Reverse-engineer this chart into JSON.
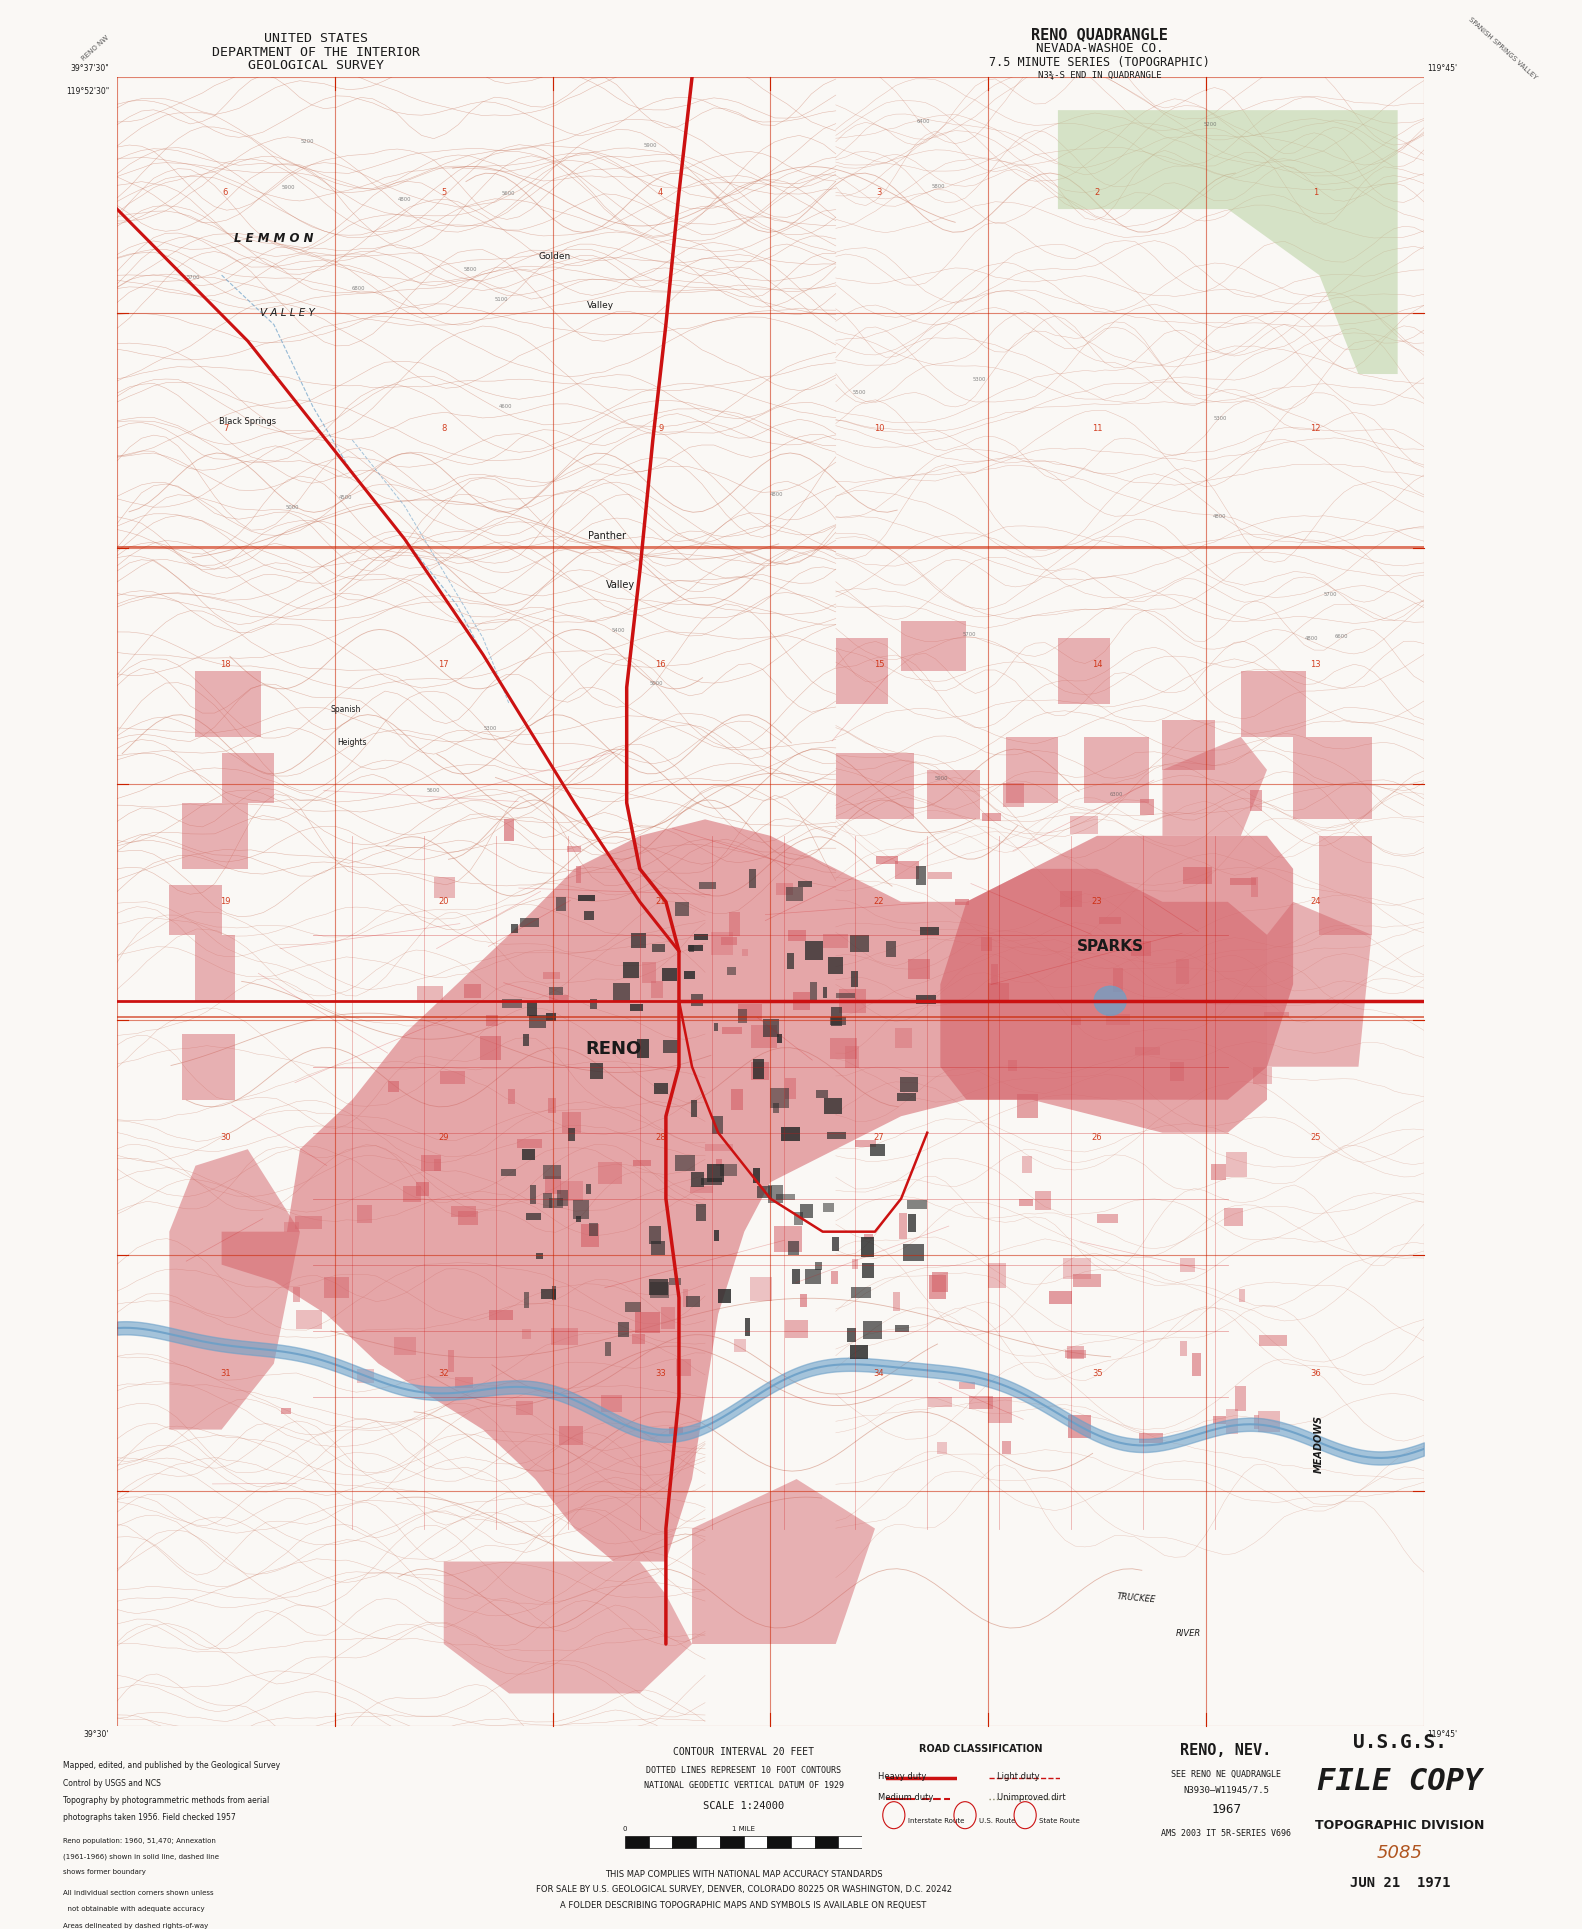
{
  "usgs_header_line1": "UNITED STATES",
  "usgs_header_line2": "DEPARTMENT OF THE INTERIOR",
  "usgs_header_line3": "GEOLOGICAL SURVEY",
  "quad_title": "RENO QUADRANGLE",
  "quad_state": "NEVADA-WASHOE CO.",
  "quad_series": "7.5 MINUTE SERIES (TOPOGRAPHIC)",
  "quad_nse": "N3¾-S END IN QUADRANGLE",
  "diagonal_label": "SPANISH SPRINGS VALLEY",
  "diagonal_label2": "RENO NW",
  "coord_tl_lat": "39°37'30\"",
  "coord_tl_lon": "119°52'30\"",
  "coord_tr_lon": "119°45'",
  "coord_bl_lat": "39°30'",
  "coord_br_lon": "119°45'",
  "stamp_line1": "U.S.G.S.",
  "stamp_line2": "FILE COPY",
  "stamp_line3": "TOPOGRAPHIC DIVISION",
  "stamp_number": "5085",
  "stamp_date": "JUN 21  1971",
  "road_class_title": "ROAD CLASSIFICATION",
  "road_heavy": "Heavy duty",
  "road_medium": "Medium duty",
  "road_light": "Light duty",
  "road_unimproved": "Unimproved dirt",
  "road_interstate": "Interstate Route",
  "road_us": "U.S. Route",
  "road_state": "State Route",
  "bottom_title": "RENO, NEV.",
  "bottom_sub1": "SEE RENO NE QUADRANGLE",
  "bottom_sub2": "N3930—W11945/7.5",
  "bottom_year": "1967",
  "bottom_ams": "AMS 2003 IT 5R-SERIES V696",
  "contour_note1": "CONTOUR INTERVAL 20 FEET",
  "contour_note2": "DOTTED LINES REPRESENT 10 FOOT CONTOURS",
  "contour_note3": "NATIONAL GEODETIC VERTICAL DATUM OF 1929",
  "scale_note": "SCALE 1:24000",
  "sale_note1": "THIS MAP COMPLIES WITH NATIONAL MAP ACCURACY STANDARDS",
  "sale_note2": "FOR SALE BY U.S. GEOLOGICAL SURVEY, DENVER, COLORADO 80225 OR WASHINGTON, D.C. 20242",
  "sale_note3": "A FOLDER DESCRIBING TOPOGRAPHIC MAPS AND SYMBOLS IS AVAILABLE ON REQUEST",
  "left_note1": "Mapped, edited, and published by the Geological Survey",
  "left_note2": "Control by USGS and NCS",
  "left_note3": "Topography by photogrammetric methods from aerial",
  "left_note4": "photographs taken 1956. Field checked 1957",
  "bg_color": "#faf8f5",
  "map_bg": "#fefefe",
  "urban_color": "#d4636a",
  "contour_color": "#c87860",
  "water_color": "#6ca0c8",
  "veg_color": "#b8d0a0",
  "road_color": "#cc1111",
  "grid_color": "#cc2200",
  "text_color": "#1a1a1a",
  "border_color": "#444444",
  "fig_width": 15.82,
  "fig_height": 19.29,
  "map_l": 0.074,
  "map_r": 0.9,
  "map_t": 0.96,
  "map_b": 0.105
}
